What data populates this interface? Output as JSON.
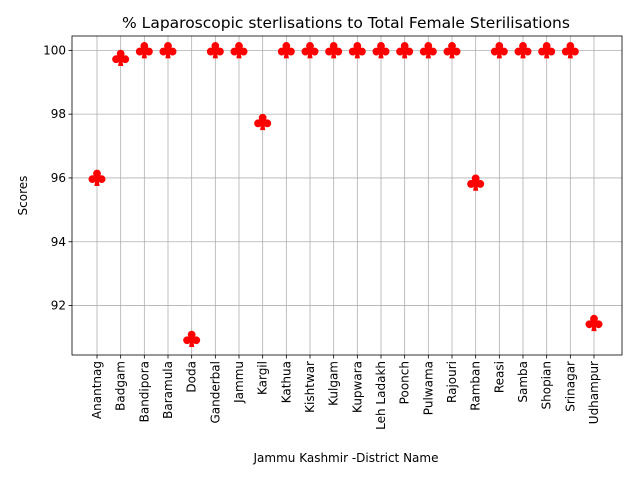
{
  "chart_data": {
    "type": "scatter",
    "title": "% Laparoscopic sterlisations to Total Female Sterilisations",
    "xlabel": "Jammu Kashmir -District Name",
    "ylabel": "Scores",
    "categories": [
      "Anantnag",
      "Badgam",
      "Bandipora",
      "Baramula",
      "Doda",
      "Ganderbal",
      "Jammu",
      "Kargil",
      "Kathua",
      "Kishtwar",
      "Kulgam",
      "Kupwara",
      "Leh Ladakh",
      "Poonch",
      "Pulwama",
      "Rajouri",
      "Ramban",
      "Reasi",
      "Samba",
      "Shopian",
      "Srinagar",
      "Udhampur"
    ],
    "values": [
      96.0,
      99.76,
      100,
      100,
      90.95,
      100,
      100,
      97.75,
      100,
      100,
      100,
      100,
      100,
      100,
      100,
      100,
      95.85,
      100,
      100,
      100,
      100,
      91.45
    ],
    "ylim": [
      90.45,
      100.45
    ],
    "yticks": [
      92,
      94,
      96,
      98,
      100
    ],
    "grid": true,
    "marker": "club",
    "marker_color": "#ff0000"
  }
}
